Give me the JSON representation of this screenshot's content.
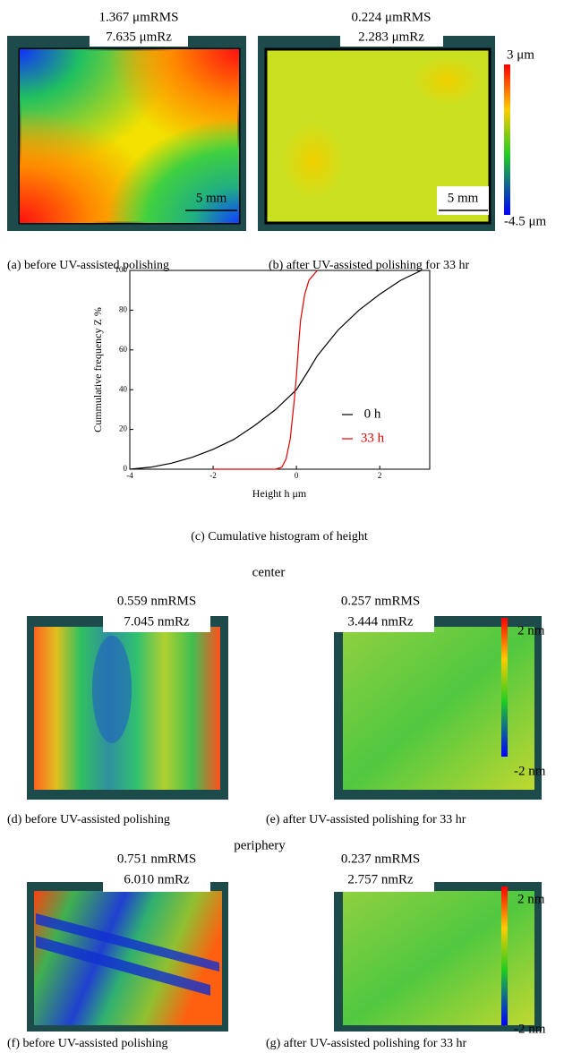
{
  "top": {
    "panels": [
      {
        "rms": "1.367 μmRMS",
        "rz": "7.635 μmRz",
        "scale": "5 mm",
        "caption": "(a) before UV-assisted polishing"
      },
      {
        "rms": "0.224 μmRMS",
        "rz": "2.283 μmRz",
        "scale": "5 mm",
        "caption": "(b) after UV-assisted polishing for 33 hr"
      }
    ],
    "colorbar": {
      "max": "3 μm",
      "min": "-4.5 μm"
    }
  },
  "chart_data": {
    "type": "line",
    "xlabel": "Height h μm",
    "ylabel": "Cummulative frequency Z %",
    "caption": "(c) Cumulative histogram of height",
    "xlim": [
      -4,
      3.2
    ],
    "ylim": [
      0,
      100
    ],
    "xticks": [
      -4,
      -2,
      0,
      2
    ],
    "yticks": [
      0,
      20,
      40,
      60,
      80,
      100
    ],
    "series": [
      {
        "name": "0 h",
        "color": "#000000",
        "x": [
          -4,
          -3.5,
          -3,
          -2.5,
          -2,
          -1.5,
          -1,
          -0.5,
          0,
          0.3,
          0.5,
          1,
          1.5,
          2,
          2.5,
          3
        ],
        "values": [
          0,
          1,
          3,
          6,
          10,
          15,
          22,
          30,
          40,
          50,
          57,
          70,
          80,
          88,
          95,
          100
        ]
      },
      {
        "name": "33 h",
        "color": "#e00000",
        "x": [
          -2,
          -0.5,
          -0.35,
          -0.25,
          -0.15,
          -0.05,
          0,
          0.05,
          0.1,
          0.2,
          0.3,
          0.5
        ],
        "values": [
          0,
          0,
          1,
          5,
          15,
          35,
          47,
          62,
          75,
          88,
          95,
          100
        ]
      }
    ]
  },
  "center": {
    "title": "center",
    "panels": [
      {
        "rms": "0.559 nmRMS",
        "rz": "7.045 nmRz",
        "caption": "(d) before UV-assisted polishing"
      },
      {
        "rms": "0.257 nmRMS",
        "rz": "3.444 nmRz",
        "caption": "(e) after UV-assisted polishing for 33 hr"
      }
    ],
    "colorbar": {
      "max": "2 nm",
      "min": "-2 nm"
    }
  },
  "periphery": {
    "title": "periphery",
    "panels": [
      {
        "rms": "0.751 nmRMS",
        "rz": "6.010 nmRz",
        "caption": "(f) before UV-assisted polishing"
      },
      {
        "rms": "0.237 nmRMS",
        "rz": "2.757 nmRz",
        "caption": "(g) after UV-assisted polishing for 33 hr"
      }
    ],
    "colorbar": {
      "max": "2 nm",
      "min": "-2 nm"
    }
  }
}
